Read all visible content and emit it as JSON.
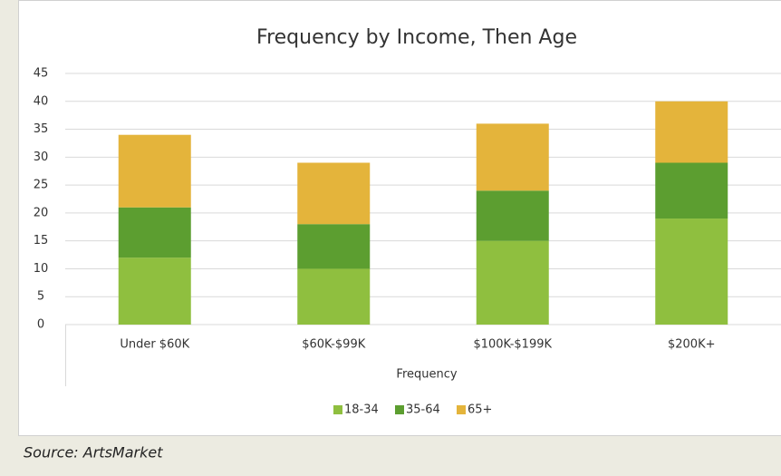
{
  "chart_data": {
    "type": "stacked_bar",
    "title": "Frequency by Income, Then Age",
    "categories": [
      "Under $60K",
      "$60K-$99K",
      "$100K-$199K",
      "$200K+"
    ],
    "x_label": "Frequency",
    "series": [
      {
        "name": "18-34",
        "color": "#8fbf3f",
        "values": [
          12,
          10,
          15,
          19
        ]
      },
      {
        "name": "35-64",
        "color": "#5c9e30",
        "values": [
          9,
          8,
          9,
          10
        ]
      },
      {
        "name": "65+",
        "color": "#e4b43b",
        "values": [
          13,
          11,
          12,
          11
        ]
      }
    ],
    "ylim": [
      0,
      45
    ],
    "yticks": [
      0,
      5,
      10,
      15,
      20,
      25,
      30,
      35,
      40,
      45
    ],
    "grid": true,
    "legend": "bottom",
    "source": "Source: ArtsMarket"
  }
}
